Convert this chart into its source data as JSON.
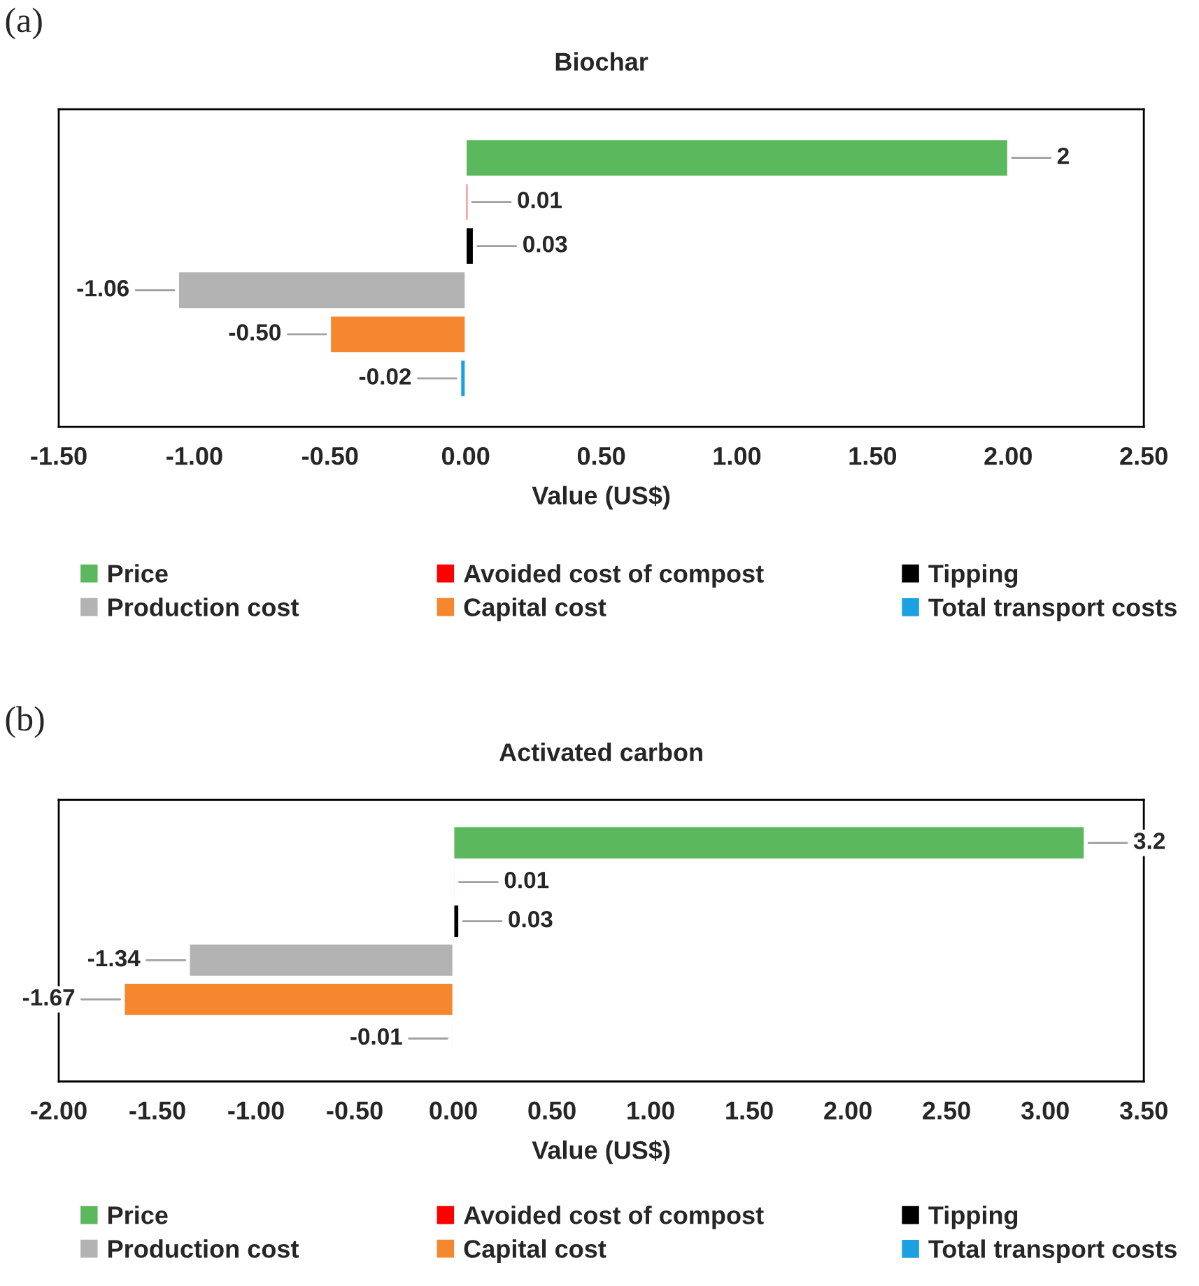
{
  "chart_data": [
    {
      "type": "bar",
      "orientation": "horizontal",
      "title": "Biochar",
      "xlabel": "Value (US$)",
      "annotations": [
        "(a)"
      ],
      "categories": [
        null,
        null,
        null,
        null,
        null,
        null
      ],
      "xlim": [
        -1.5,
        2.5
      ],
      "xticks": [
        {
          "value": -1.5,
          "label": "-1.50"
        },
        {
          "value": -1.0,
          "label": "-1.00"
        },
        {
          "value": -0.5,
          "label": "-0.50"
        },
        {
          "value": 0,
          "label": "0.00"
        },
        {
          "value": 0.5,
          "label": "0.50"
        },
        {
          "value": 1.0,
          "label": "1.00"
        },
        {
          "value": 1.5,
          "label": "1.50"
        },
        {
          "value": 2.0,
          "label": "2.00"
        },
        {
          "value": 2.5,
          "label": "2.50"
        }
      ],
      "tick_labels": "x",
      "grid": false,
      "legend": "bottom",
      "series": [
        {
          "name": "Price",
          "color": "#5cb85c",
          "values": [
            2,
            null,
            null,
            null,
            null,
            null
          ],
          "value_labels": [
            "2",
            null,
            null,
            null,
            null,
            null
          ]
        },
        {
          "name": "Avoided cost of compost",
          "color": "#ff0000",
          "values": [
            null,
            0.01,
            null,
            null,
            null,
            null
          ],
          "value_labels": [
            null,
            "0.01",
            null,
            null,
            null,
            null
          ]
        },
        {
          "name": "Tipping",
          "color": "#000000",
          "values": [
            null,
            null,
            0.03,
            null,
            null,
            null
          ],
          "value_labels": [
            null,
            null,
            "0.03",
            null,
            null,
            null
          ]
        },
        {
          "name": "Production cost",
          "color": "#b3b3b3",
          "values": [
            null,
            null,
            null,
            -1.06,
            null,
            null
          ],
          "value_labels": [
            null,
            null,
            null,
            "-1.06",
            null,
            null
          ]
        },
        {
          "name": "Capital cost",
          "color": "#f5872f",
          "values": [
            null,
            null,
            null,
            null,
            -0.5,
            null
          ],
          "value_labels": [
            null,
            null,
            null,
            null,
            "-0.50",
            null
          ]
        },
        {
          "name": "Total transport costs",
          "color": "#1ba1e2",
          "values": [
            null,
            null,
            null,
            null,
            null,
            -0.02
          ],
          "value_labels": [
            null,
            null,
            null,
            null,
            null,
            "-0.02"
          ]
        }
      ]
    },
    {
      "type": "bar",
      "orientation": "horizontal",
      "title": "Activated carbon",
      "xlabel": "Value (US$)",
      "annotations": [
        "(b)"
      ],
      "categories": [
        null,
        null,
        null,
        null,
        null,
        null
      ],
      "xlim": [
        -2.0,
        3.5
      ],
      "xticks": [
        {
          "value": -2.0,
          "label": "-2.00"
        },
        {
          "value": -1.5,
          "label": "-1.50"
        },
        {
          "value": -1.0,
          "label": "-1.00"
        },
        {
          "value": -0.5,
          "label": "-0.50"
        },
        {
          "value": 0,
          "label": "0.00"
        },
        {
          "value": 0.5,
          "label": "0.50"
        },
        {
          "value": 1.0,
          "label": "1.00"
        },
        {
          "value": 1.5,
          "label": "1.50"
        },
        {
          "value": 2.0,
          "label": "2.00"
        },
        {
          "value": 2.5,
          "label": "2.50"
        },
        {
          "value": 3.0,
          "label": "3.00"
        },
        {
          "value": 3.5,
          "label": "3.50"
        }
      ],
      "tick_labels": "x",
      "grid": false,
      "legend": "bottom",
      "series": [
        {
          "name": "Price",
          "color": "#5cb85c",
          "values": [
            3.2,
            null,
            null,
            null,
            null,
            null
          ],
          "value_labels": [
            "3.2",
            null,
            null,
            null,
            null,
            null
          ]
        },
        {
          "name": "Avoided cost of compost",
          "color": "#ff0000",
          "values": [
            null,
            0.01,
            null,
            null,
            null,
            null
          ],
          "value_labels": [
            null,
            "0.01",
            null,
            null,
            null,
            null
          ]
        },
        {
          "name": "Tipping",
          "color": "#000000",
          "values": [
            null,
            null,
            0.03,
            null,
            null,
            null
          ],
          "value_labels": [
            null,
            null,
            "0.03",
            null,
            null,
            null
          ]
        },
        {
          "name": "Production cost",
          "color": "#b3b3b3",
          "values": [
            null,
            null,
            null,
            -1.34,
            null,
            null
          ],
          "value_labels": [
            null,
            null,
            null,
            "-1.34",
            null,
            null
          ]
        },
        {
          "name": "Capital cost",
          "color": "#f5872f",
          "values": [
            null,
            null,
            null,
            null,
            -1.67,
            null
          ],
          "value_labels": [
            null,
            null,
            null,
            null,
            "-1.67",
            null
          ]
        },
        {
          "name": "Total transport costs",
          "color": "#1ba1e2",
          "values": [
            null,
            null,
            null,
            null,
            null,
            -0.01
          ],
          "value_labels": [
            null,
            null,
            null,
            null,
            null,
            "-0.01"
          ]
        }
      ]
    }
  ]
}
